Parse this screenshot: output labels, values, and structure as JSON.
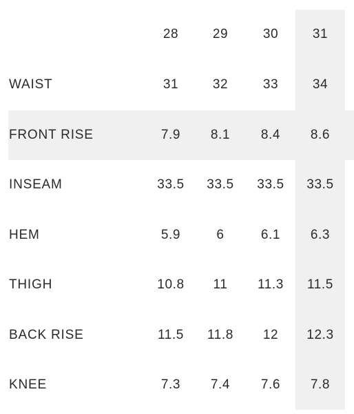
{
  "size_chart": {
    "sizes": [
      "28",
      "29",
      "30",
      "31"
    ],
    "highlighted_size": "31",
    "highlighted_measurement": "FRONT RISE",
    "rows": [
      {
        "label": "WAIST",
        "values": [
          "31",
          "32",
          "33",
          "34"
        ]
      },
      {
        "label": "FRONT RISE",
        "values": [
          "7.9",
          "8.1",
          "8.4",
          "8.6"
        ]
      },
      {
        "label": "INSEAM",
        "values": [
          "33.5",
          "33.5",
          "33.5",
          "33.5"
        ]
      },
      {
        "label": "HEM",
        "values": [
          "5.9",
          "6",
          "6.1",
          "6.3"
        ]
      },
      {
        "label": "THIGH",
        "values": [
          "10.8",
          "11",
          "11.3",
          "11.5"
        ]
      },
      {
        "label": "BACK RISE",
        "values": [
          "11.5",
          "11.8",
          "12",
          "12.3"
        ]
      },
      {
        "label": "KNEE",
        "values": [
          "7.3",
          "7.4",
          "7.6",
          "7.8"
        ]
      }
    ]
  },
  "colors": {
    "text": "#2a2a2a",
    "highlight": "#f0f0f0",
    "background": "#ffffff"
  }
}
